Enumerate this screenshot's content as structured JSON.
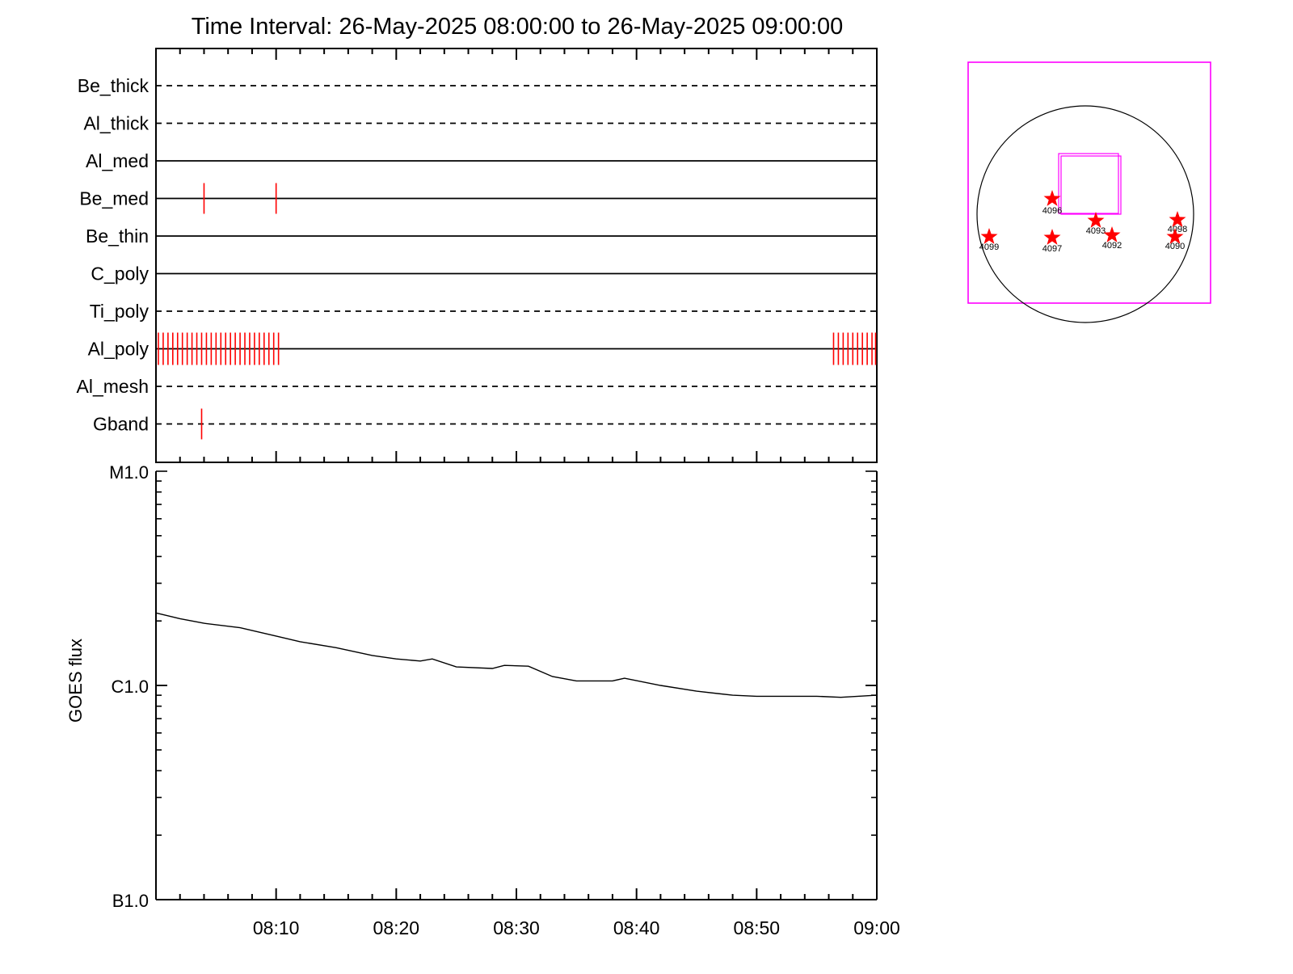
{
  "chart_data": {
    "type": "line",
    "title": "Time Interval: 26-May-2025 08:00:00 to 26-May-2025 09:00:00",
    "x_range": [
      "08:00",
      "09:00"
    ],
    "x_tick_labels": [
      "08:10",
      "08:20",
      "08:30",
      "08:40",
      "08:50",
      "09:00"
    ],
    "filters": [
      {
        "name": "Be_thick",
        "style": "dashed",
        "events_min": []
      },
      {
        "name": "Al_thick",
        "style": "dashed",
        "events_min": []
      },
      {
        "name": "Al_med",
        "style": "solid",
        "events_min": []
      },
      {
        "name": "Be_med",
        "style": "solid",
        "events_min": [
          4.0,
          10.0
        ]
      },
      {
        "name": "Be_thin",
        "style": "solid",
        "events_min": []
      },
      {
        "name": "C_poly",
        "style": "solid",
        "events_min": []
      },
      {
        "name": "Ti_poly",
        "style": "dashed",
        "events_min": []
      },
      {
        "name": "Al_poly",
        "style": "solid",
        "events_min": [
          0.2,
          0.6,
          1.0,
          1.4,
          1.8,
          2.2,
          2.6,
          3.0,
          3.4,
          3.8,
          4.2,
          4.6,
          5.0,
          5.4,
          5.8,
          6.2,
          6.6,
          7.0,
          7.4,
          7.8,
          8.2,
          8.6,
          9.0,
          9.4,
          9.8,
          10.2,
          56.4,
          56.8,
          57.2,
          57.6,
          58.0,
          58.4,
          58.8,
          59.2,
          59.6,
          59.9
        ]
      },
      {
        "name": "Al_mesh",
        "style": "dashed",
        "events_min": []
      },
      {
        "name": "Gband",
        "style": "dashed",
        "events_min": [
          3.8
        ]
      }
    ],
    "goes": {
      "ylabel": "GOES flux",
      "y_scale": "log",
      "y_range": [
        1e-07,
        1e-05
      ],
      "y_tick_labels": [
        {
          "label": "B1.0",
          "value": 1e-07
        },
        {
          "label": "C1.0",
          "value": 1e-06
        },
        {
          "label": "M1.0",
          "value": 1e-05
        }
      ],
      "series": [
        {
          "color": "#000000",
          "x_min": [
            0,
            2,
            4,
            7,
            10,
            12,
            15,
            18,
            20,
            22,
            23,
            25,
            28,
            29,
            31,
            33,
            35,
            38,
            39,
            42,
            45,
            48,
            50,
            52,
            55,
            57,
            60
          ],
          "y": [
            2.18e-06,
            2.05e-06,
            1.95e-06,
            1.86e-06,
            1.7e-06,
            1.6e-06,
            1.5e-06,
            1.38e-06,
            1.33e-06,
            1.3e-06,
            1.33e-06,
            1.22e-06,
            1.2e-06,
            1.24e-06,
            1.23e-06,
            1.1e-06,
            1.05e-06,
            1.05e-06,
            1.08e-06,
            1e-06,
            9.4e-07,
            9e-07,
            8.9e-07,
            8.9e-07,
            8.9e-07,
            8.8e-07,
            9e-07
          ]
        }
      ]
    },
    "sun_map": {
      "box_color": "#ff00ff",
      "star_color": "#ff0000",
      "regions": [
        {
          "label": "4096"
        },
        {
          "label": "4093"
        },
        {
          "label": "4098"
        },
        {
          "label": "4099"
        },
        {
          "label": "4097"
        },
        {
          "label": "4092"
        },
        {
          "label": "4090"
        }
      ]
    }
  }
}
